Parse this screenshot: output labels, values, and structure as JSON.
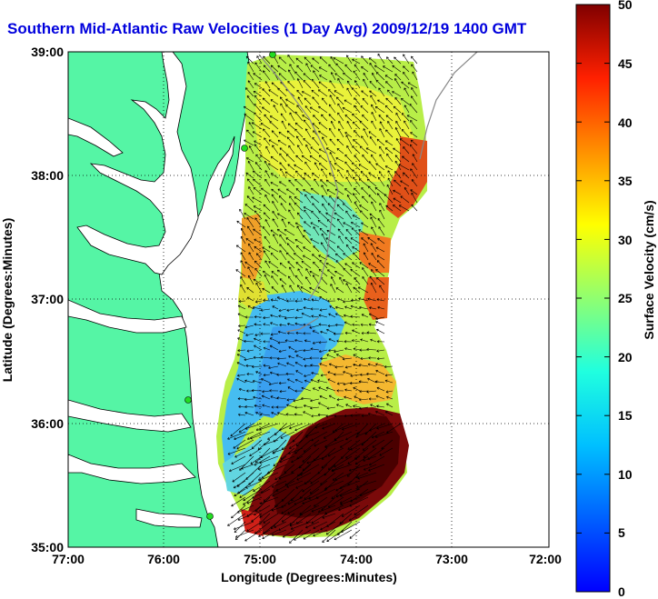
{
  "title": "Southern Mid-Atlantic Raw Velocities (1 Day Avg) 2009/12/19 1400 GMT",
  "xaxis": {
    "label": "Longitude (Degrees:Minutes)",
    "ticks": [
      "77:00",
      "76:00",
      "75:00",
      "74:00",
      "73:00",
      "72:00"
    ]
  },
  "yaxis": {
    "label": "Latitude (Degrees:Minutes)",
    "ticks": [
      "39:00",
      "38:00",
      "37:00",
      "36:00",
      "35:00"
    ]
  },
  "colorbar": {
    "label": "Surface Velocity (cm/s)",
    "ticks": [
      "50",
      "45",
      "40",
      "35",
      "30",
      "25",
      "20",
      "15",
      "10",
      "5",
      "0"
    ],
    "range": [
      0,
      50
    ],
    "colormap": "jet"
  },
  "colors": {
    "land": "#55f5a5",
    "title": "#0000dd",
    "station": "#22dd22"
  },
  "map_extent": {
    "lon": [
      -77,
      -72
    ],
    "lat": [
      35,
      39
    ]
  }
}
